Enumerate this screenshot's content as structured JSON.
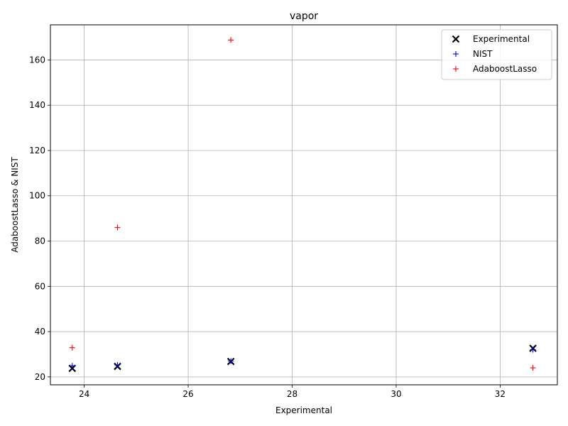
{
  "chart_data": {
    "type": "scatter",
    "title": "vapor",
    "xlabel": "Experimental",
    "ylabel": "AdaboostLasso & NIST",
    "xlim": [
      23.35,
      33.1
    ],
    "ylim": [
      16.5,
      175.5
    ],
    "xticks": [
      24,
      26,
      28,
      30,
      32
    ],
    "yticks": [
      20,
      40,
      60,
      80,
      100,
      120,
      140,
      160
    ],
    "grid": true,
    "legend_position": "top-right",
    "series": [
      {
        "name": "Experimental",
        "marker": "x",
        "color": "#000000",
        "points": [
          [
            23.77,
            23.77
          ],
          [
            24.64,
            24.64
          ],
          [
            26.82,
            26.82
          ],
          [
            32.63,
            32.63
          ]
        ]
      },
      {
        "name": "NIST",
        "marker": "+",
        "color": "#0000ff",
        "points": [
          [
            23.77,
            24.9
          ],
          [
            24.64,
            25.3
          ],
          [
            26.82,
            27.0
          ],
          [
            32.63,
            32.0
          ]
        ]
      },
      {
        "name": "AdaboostLasso",
        "marker": "+",
        "color": "#ff0000",
        "points": [
          [
            23.77,
            32.9
          ],
          [
            24.64,
            86.0
          ],
          [
            26.82,
            168.8
          ],
          [
            32.63,
            24.0
          ]
        ]
      }
    ]
  }
}
